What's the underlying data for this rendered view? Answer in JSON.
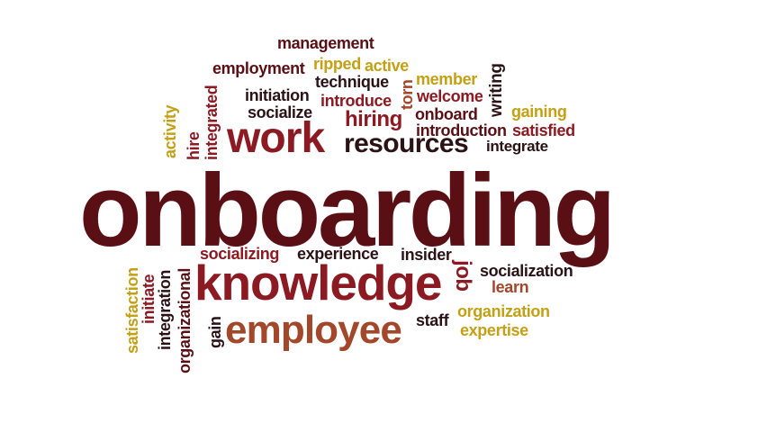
{
  "colors": {
    "dark_maroon": "#5a0f14",
    "crimson": "#8b1a22",
    "rust": "#a3472a",
    "gold": "#c4a015",
    "near_black": "#2a1218"
  },
  "words": {
    "onboarding": "onboarding",
    "knowledge": "knowledge",
    "work": "work",
    "employee": "employee",
    "resources": "resources",
    "hiring": "hiring",
    "management": "management",
    "employment": "employment",
    "ripped": "ripped",
    "active": "active",
    "member": "member",
    "writing": "writing",
    "initiation": "initiation",
    "technique": "technique",
    "introduce": "introduce",
    "torn": "torn",
    "welcome": "welcome",
    "gaining": "gaining",
    "socialize": "socialize",
    "onboard": "onboard",
    "introduction": "introduction",
    "satisfied": "satisfied",
    "integrate": "integrate",
    "activity": "activity",
    "hire": "hire",
    "integrated": "integrated",
    "socializing": "socializing",
    "experience": "experience",
    "insider": "insider",
    "job": "job",
    "socialization": "socialization",
    "learn": "learn",
    "organization": "organization",
    "expertise": "expertise",
    "staff": "staff",
    "satisfaction": "satisfaction",
    "initiate": "initiate",
    "integration": "integration",
    "organizational": "organizational",
    "gain": "gain"
  }
}
